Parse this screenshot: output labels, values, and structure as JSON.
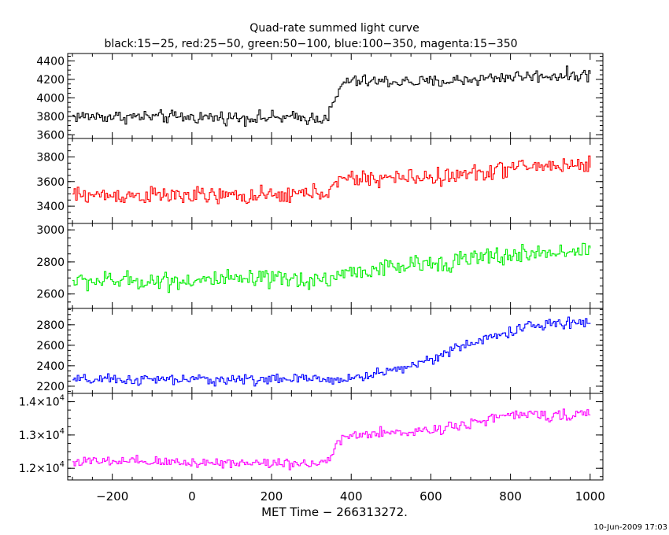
{
  "chart_data": {
    "type": "line",
    "title": "Quad-rate summed light curve",
    "subtitle": "black:15−25, red:25−50, green:50−100, blue:100−350, magenta:15−350",
    "xlabel": "MET Time − 266313272.",
    "footer": "10-Jun-2009 17:03",
    "xlim": [
      -312,
      1032
    ],
    "x_ticks": [
      -200,
      0,
      200,
      400,
      600,
      800,
      1000
    ],
    "x_tick_labels": [
      "−200",
      "0",
      "200",
      "400",
      "600",
      "800",
      "1000"
    ],
    "step": 4,
    "x_start": -300,
    "x_end": 1000,
    "panels": [
      {
        "name": "15-25",
        "color": "#000000",
        "ylim": [
          3560,
          4480
        ],
        "y_ticks": [
          3600,
          3800,
          4000,
          4200,
          4400
        ],
        "y_tick_labels": [
          "3600",
          "3800",
          "4000",
          "4200",
          "4400"
        ],
        "trend_knots": [
          [
            -300,
            3800
          ],
          [
            320,
            3780
          ],
          [
            340,
            3800
          ],
          [
            380,
            4180
          ],
          [
            600,
            4170
          ],
          [
            800,
            4230
          ],
          [
            1000,
            4250
          ]
        ],
        "noise": 60
      },
      {
        "name": "25-50",
        "color": "#ff0000",
        "ylim": [
          3260,
          3950
        ],
        "y_ticks": [
          3400,
          3600,
          3800
        ],
        "y_tick_labels": [
          "3400",
          "3600",
          "3800"
        ],
        "trend_knots": [
          [
            -300,
            3490
          ],
          [
            200,
            3480
          ],
          [
            340,
            3520
          ],
          [
            380,
            3620
          ],
          [
            650,
            3640
          ],
          [
            820,
            3720
          ],
          [
            1000,
            3740
          ]
        ],
        "noise": 60
      },
      {
        "name": "50-100",
        "color": "#00ee00",
        "ylim": [
          2510,
          3040
        ],
        "y_ticks": [
          2600,
          2800,
          3000
        ],
        "y_tick_labels": [
          "2600",
          "2800",
          "3000"
        ],
        "trend_knots": [
          [
            -300,
            2680
          ],
          [
            340,
            2690
          ],
          [
            380,
            2730
          ],
          [
            700,
            2820
          ],
          [
            1000,
            2880
          ]
        ],
        "noise": 50
      },
      {
        "name": "100-350",
        "color": "#0000ff",
        "ylim": [
          2130,
          2960
        ],
        "y_ticks": [
          2200,
          2400,
          2600,
          2800
        ],
        "y_tick_labels": [
          "2200",
          "2400",
          "2600",
          "2800"
        ],
        "trend_knots": [
          [
            -300,
            2260
          ],
          [
            400,
            2270
          ],
          [
            550,
            2400
          ],
          [
            700,
            2620
          ],
          [
            850,
            2790
          ],
          [
            1000,
            2830
          ]
        ],
        "noise": 45
      },
      {
        "name": "15-350",
        "color": "#ff00ff",
        "ylim": [
          11650,
          14250
        ],
        "y_ticks": [
          12000,
          13000,
          14000
        ],
        "y_tick_labels": [
          {
            "base": "1.2×10",
            "exp": "4"
          },
          {
            "base": "1.3×10",
            "exp": "4"
          },
          {
            "base": "1.4×10",
            "exp": "4"
          }
        ],
        "trend_knots": [
          [
            -300,
            12200
          ],
          [
            320,
            12150
          ],
          [
            345,
            12300
          ],
          [
            380,
            12950
          ],
          [
            600,
            13150
          ],
          [
            800,
            13600
          ],
          [
            1000,
            13600
          ]
        ],
        "noise": 140
      }
    ]
  }
}
